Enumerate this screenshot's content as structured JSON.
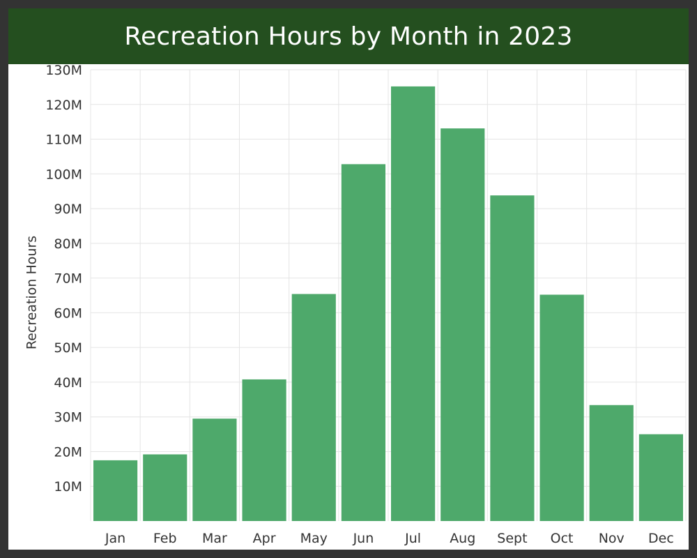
{
  "chart_data": {
    "type": "bar",
    "title": "Recreation Hours by Month in 2023",
    "xlabel": "",
    "ylabel": "Recreation Hours",
    "categories": [
      "Jan",
      "Feb",
      "Mar",
      "Apr",
      "May",
      "Jun",
      "Jul",
      "Aug",
      "Sept",
      "Oct",
      "Nov",
      "Dec"
    ],
    "values": [
      17.5,
      19.2,
      29.5,
      40.8,
      65.4,
      102.8,
      125.2,
      113.1,
      93.8,
      65.2,
      33.4,
      25.0
    ],
    "value_unit": "M",
    "ylim": [
      0,
      130
    ],
    "yticks": [
      10,
      20,
      30,
      40,
      50,
      60,
      70,
      80,
      90,
      100,
      110,
      120,
      130
    ],
    "ytick_labels": [
      "10M",
      "20M",
      "30M",
      "40M",
      "50M",
      "60M",
      "70M",
      "80M",
      "90M",
      "100M",
      "110M",
      "120M",
      "130M"
    ],
    "grid": true,
    "legend": "none",
    "bar_color": "#4ea96b",
    "title_bar_color": "#244f1f"
  }
}
